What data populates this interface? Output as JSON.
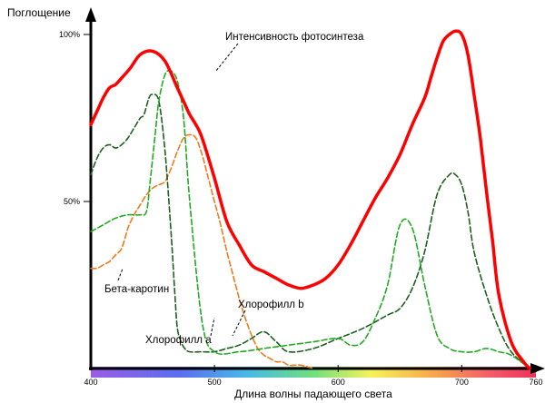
{
  "chart_data": {
    "type": "line",
    "ylabel": "Поглощение",
    "xlabel": "Длина волны падающего света",
    "xlim": [
      400,
      760
    ],
    "ylim": [
      0,
      100
    ],
    "x_ticks": [
      {
        "value": 400,
        "label": "400"
      },
      {
        "value": 500,
        "label": "500"
      },
      {
        "value": 600,
        "label": "600"
      },
      {
        "value": 700,
        "label": "700"
      },
      {
        "value": 760,
        "label": "760"
      }
    ],
    "y_ticks": [
      {
        "value": 50,
        "label": "50%"
      },
      {
        "value": 100,
        "label": "100%"
      }
    ],
    "grid": false,
    "legend": "none",
    "spectrum_bar": true,
    "series": [
      {
        "name": "Интенсивность фотосинтеза",
        "color": "#ff0000",
        "style": "solid",
        "x": [
          400,
          405,
          410,
          415,
          420,
          425,
          432,
          440,
          450,
          460,
          470,
          475,
          480,
          485,
          490,
          500,
          510,
          520,
          530,
          540,
          550,
          560,
          570,
          580,
          590,
          600,
          610,
          620,
          630,
          640,
          650,
          660,
          670,
          675,
          680,
          685,
          690,
          695,
          700,
          705,
          710,
          715,
          720,
          725,
          730,
          740,
          750,
          755
        ],
        "y": [
          73,
          77,
          81,
          84,
          85,
          87,
          90,
          94,
          95,
          92,
          84,
          80,
          76,
          73,
          69,
          57,
          44,
          37,
          31,
          29,
          27,
          25,
          24,
          25,
          27,
          31,
          37,
          44,
          51,
          57,
          64,
          73,
          81,
          87,
          93,
          98,
          100,
          101,
          100,
          94,
          82,
          69,
          53,
          38,
          22,
          8,
          2,
          0
        ]
      },
      {
        "name": "Хлорофилл b",
        "color": "#22aa22",
        "style": "dashed",
        "x": [
          400,
          410,
          420,
          430,
          440,
          445,
          448,
          452,
          455,
          460,
          465,
          470,
          475,
          480,
          490,
          500,
          520,
          540,
          560,
          580,
          600,
          610,
          620,
          630,
          640,
          650,
          660,
          670,
          680,
          690,
          700,
          710,
          720,
          730,
          740,
          755
        ],
        "y": [
          41,
          43,
          45,
          46,
          46,
          47,
          56,
          70,
          80,
          88,
          89,
          86,
          75,
          50,
          14,
          5,
          5,
          6,
          7,
          8,
          9,
          7,
          8,
          15,
          25,
          43,
          42,
          25,
          10,
          6,
          5,
          5,
          6,
          5,
          4,
          0
        ]
      },
      {
        "name": "Хлорофилл a",
        "color": "#1e5e1e",
        "style": "dashed",
        "x": [
          400,
          405,
          410,
          415,
          420,
          425,
          430,
          435,
          440,
          443,
          447,
          450,
          455,
          460,
          465,
          468,
          470,
          473,
          476,
          480,
          490,
          500,
          510,
          520,
          530,
          540,
          550,
          560,
          580,
          600,
          620,
          640,
          650,
          660,
          670,
          680,
          690,
          695,
          700,
          705,
          710,
          720,
          730,
          740,
          755
        ],
        "y": [
          58,
          63,
          66,
          67,
          66,
          67,
          69,
          72,
          75,
          76,
          81,
          82,
          80,
          65,
          40,
          22,
          12,
          8,
          6,
          5,
          5,
          5,
          6,
          7,
          9,
          11,
          8,
          5,
          6,
          9,
          12,
          16,
          18,
          24,
          35,
          52,
          58,
          58,
          55,
          47,
          35,
          22,
          12,
          5,
          0
        ]
      },
      {
        "name": "Бета-каротин",
        "color": "#f07a1a",
        "style": "dashed",
        "x": [
          400,
          405,
          410,
          415,
          420,
          425,
          430,
          435,
          440,
          445,
          450,
          455,
          460,
          465,
          470,
          475,
          480,
          485,
          490,
          495,
          500,
          505,
          510,
          515,
          520,
          525,
          530,
          535,
          540,
          545,
          550,
          555,
          560,
          565,
          570,
          580
        ],
        "y": [
          30,
          30,
          31,
          32,
          34,
          36,
          42,
          46,
          49,
          52,
          54,
          55,
          56,
          60,
          65,
          69,
          70,
          69,
          64,
          57,
          50,
          43,
          35,
          28,
          21,
          15,
          10,
          6,
          4,
          3,
          2,
          2,
          1,
          1,
          1,
          0
        ]
      }
    ],
    "annotations": [
      {
        "text": "Интенсивность фотосинтеза",
        "series": "Интенсивность фотосинтеза"
      },
      {
        "text": "Хлорофилл b",
        "series": "Хлорофилл b"
      },
      {
        "text": "Хлорофилл a",
        "series": "Хлорофилл a"
      },
      {
        "text": "Бета-каротин",
        "series": "Бета-каротин"
      }
    ]
  }
}
